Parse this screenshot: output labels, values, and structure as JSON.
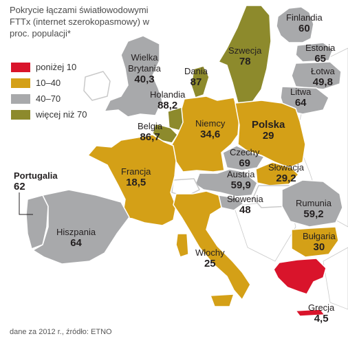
{
  "title": "Pokrycie łączami światłowodowymi FTTx (internet szerokopasmowy) w proc. populacji*",
  "colors": {
    "red": "#d9142b",
    "yellow": "#d4a017",
    "gray": "#a8a9ab",
    "olive": "#8d8a2c",
    "other": "#ffffff",
    "border": "#ffffff",
    "outline": "#c9c9c9"
  },
  "legend": [
    {
      "label": "poniżej 10",
      "color": "#d9142b"
    },
    {
      "label": "10–40",
      "color": "#d4a017"
    },
    {
      "label": "40–70",
      "color": "#a8a9ab"
    },
    {
      "label": "więcej niż 70",
      "color": "#8d8a2c"
    }
  ],
  "countries": [
    {
      "name": "Finlandia",
      "value": "60",
      "category": "gray"
    },
    {
      "name": "Szwecja",
      "value": "78",
      "category": "olive"
    },
    {
      "name": "Estonia",
      "value": "65",
      "category": "gray"
    },
    {
      "name": "Łotwa",
      "value": "49,8",
      "category": "gray"
    },
    {
      "name": "Litwa",
      "value": "64",
      "category": "gray"
    },
    {
      "name": "Wielka Brytania",
      "value": "40,3",
      "category": "gray"
    },
    {
      "name": "Dania",
      "value": "87",
      "category": "olive"
    },
    {
      "name": "Holandia",
      "value": "88,2",
      "category": "olive"
    },
    {
      "name": "Belgia",
      "value": "86,7",
      "category": "olive"
    },
    {
      "name": "Niemcy",
      "value": "34,6",
      "category": "yellow"
    },
    {
      "name": "Polska",
      "value": "29",
      "category": "yellow"
    },
    {
      "name": "Czechy",
      "value": "69",
      "category": "gray"
    },
    {
      "name": "Słowacja",
      "value": "29,2",
      "category": "yellow"
    },
    {
      "name": "Austria",
      "value": "59,9",
      "category": "gray"
    },
    {
      "name": "Słowenia",
      "value": "48",
      "category": "gray"
    },
    {
      "name": "Francja",
      "value": "18,5",
      "category": "yellow"
    },
    {
      "name": "Portugalia",
      "value": "62",
      "category": "gray"
    },
    {
      "name": "Hiszpania",
      "value": "64",
      "category": "gray"
    },
    {
      "name": "Włochy",
      "value": "25",
      "category": "yellow"
    },
    {
      "name": "Rumunia",
      "value": "59,2",
      "category": "gray"
    },
    {
      "name": "Bułgaria",
      "value": "30",
      "category": "yellow"
    },
    {
      "name": "Grecja",
      "value": "4,5",
      "category": "red"
    }
  ],
  "source": "dane za 2012 r., źródło: ETNO"
}
